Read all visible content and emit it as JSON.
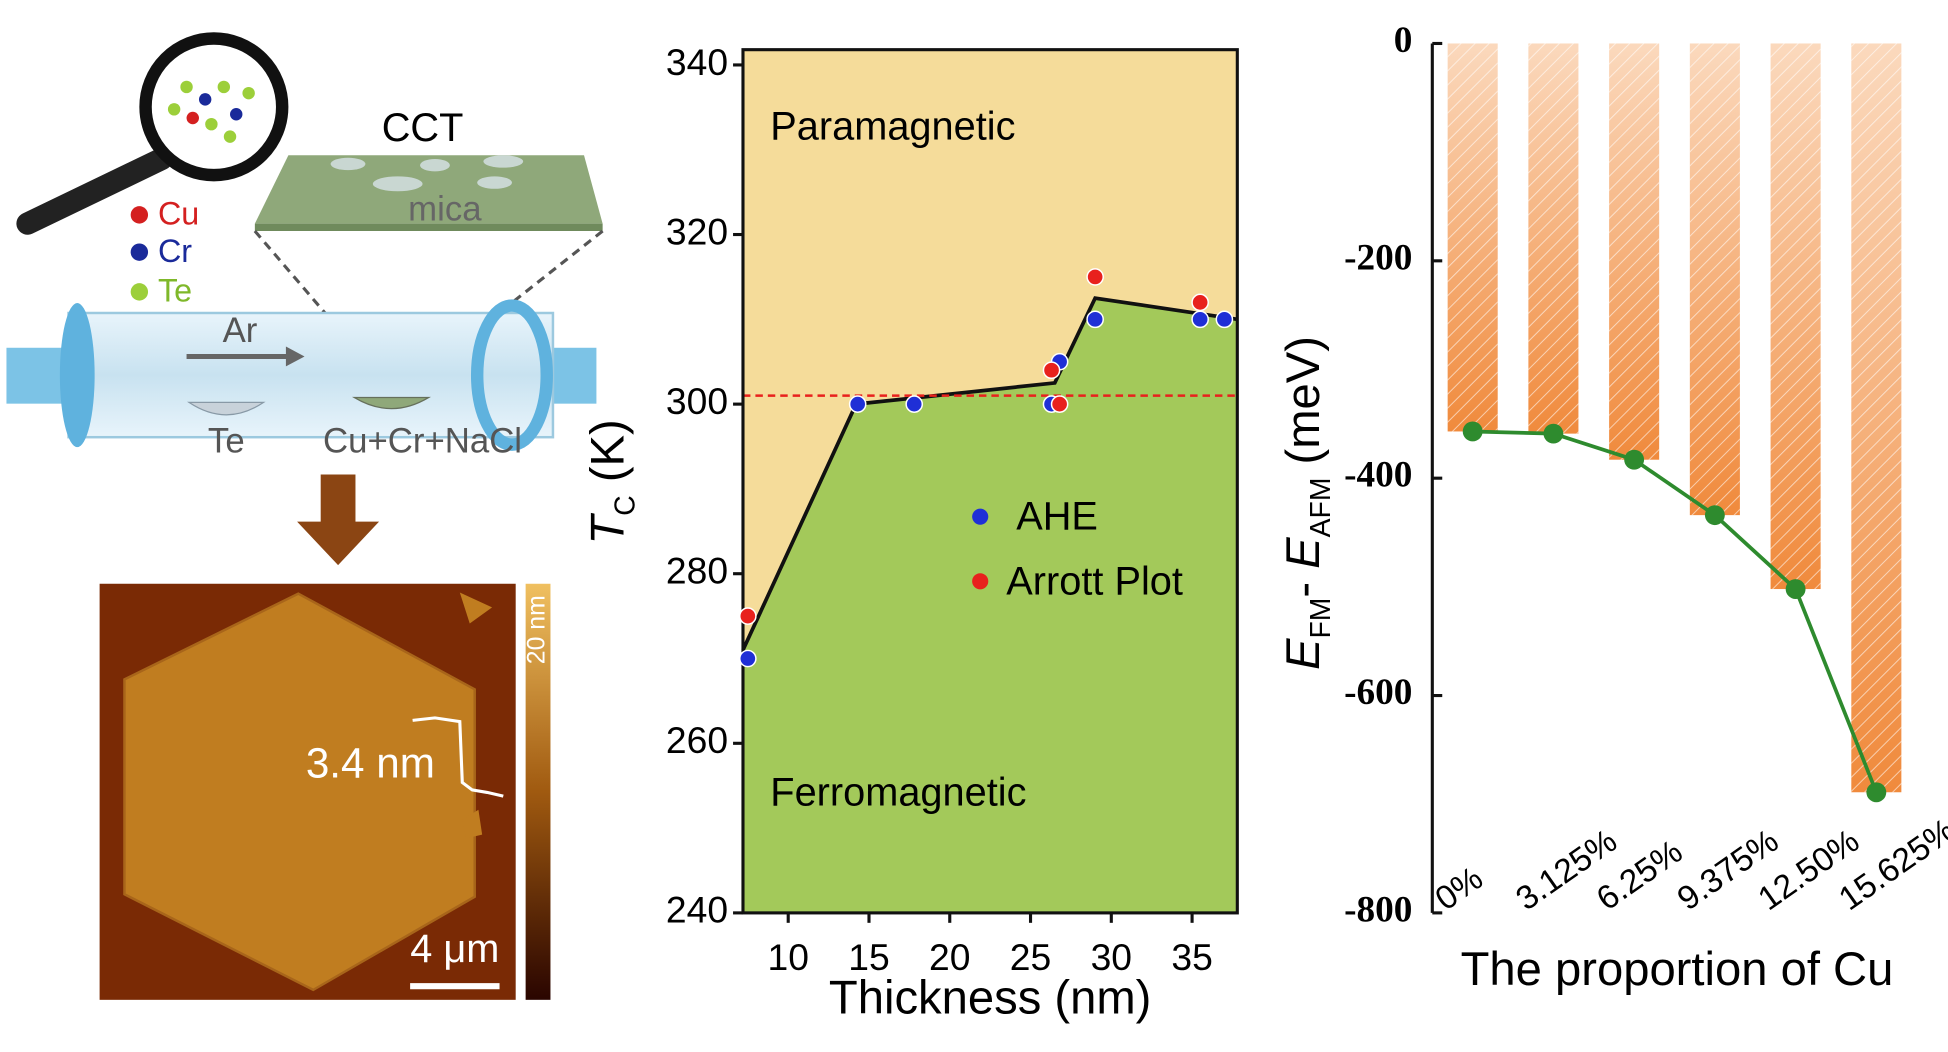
{
  "schematic": {
    "title": "CCT",
    "substrate": "mica",
    "elements": [
      "Cu",
      "Cr",
      "Te"
    ],
    "gas": "Ar",
    "source1": "Te",
    "source2": "Cu+Cr+NaCl",
    "step_height": "3.4 nm",
    "scale_bar": "4 μm",
    "colorbar": "20 nm"
  },
  "chart_data": [
    {
      "type": "scatter",
      "xlabel": "Thickness (nm)",
      "ylabel": [
        "T",
        "C",
        " (K)"
      ],
      "xlim": [
        7.2,
        37.8
      ],
      "ylim": [
        240,
        341.8
      ],
      "xticks": [
        10,
        15,
        20,
        25,
        30,
        35
      ],
      "yticks": [
        240,
        260,
        280,
        300,
        320,
        340
      ],
      "annotations": [
        "Paramagnetic",
        "Ferromagnetic"
      ],
      "background_color": "#f5dc9a",
      "region_color": "#a3c95a",
      "reference_line": 301,
      "reference_color": "#e8211d",
      "boundary": {
        "x": [
          7.2,
          14.2,
          26.5,
          29,
          37.8
        ],
        "values": [
          271,
          300,
          302.5,
          312.5,
          310
        ],
        "color": "#111111"
      },
      "series": [
        {
          "name": "AHE",
          "color": "#1f2fd6",
          "x": [
            7.5,
            14.3,
            17.8,
            26.3,
            26.8,
            29,
            35.5,
            37
          ],
          "values": [
            270,
            300,
            300,
            300,
            305,
            310,
            310,
            310
          ]
        },
        {
          "name": "Arrott Plot",
          "color": "#e8211d",
          "x": [
            7.5,
            26.3,
            26.8,
            29,
            35.5
          ],
          "values": [
            275,
            304,
            300,
            315,
            312
          ]
        }
      ]
    },
    {
      "type": "bar",
      "xlabel": "The proportion of Cu",
      "ylabel": [
        "E",
        "FM",
        "- ",
        "E",
        "AFM",
        " (meV)"
      ],
      "categories": [
        "0%",
        "3.125%",
        "6.25%",
        "9.375%",
        "12.50%",
        "15.625%"
      ],
      "values": [
        -357,
        -359,
        -383,
        -434,
        -502,
        -689
      ],
      "ylim": [
        -800,
        0
      ],
      "yticks": [
        0,
        -200,
        -400,
        -600,
        -800
      ],
      "color": "#f08a3c",
      "line_color": "#2e8b2e"
    }
  ]
}
